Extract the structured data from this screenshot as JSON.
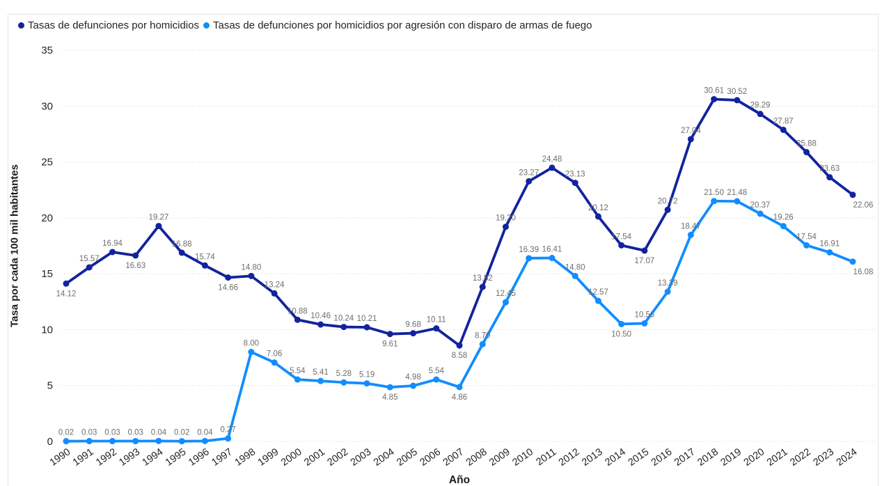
{
  "legend": {
    "items": [
      {
        "label": "Tasas de defunciones por homicidios",
        "color": "#12239E"
      },
      {
        "label": "Tasas de defunciones por homicidios por agresión con disparo de armas de fuego",
        "color": "#118DFF"
      }
    ]
  },
  "chart_data": {
    "type": "line",
    "title": "",
    "xlabel": "Año",
    "ylabel": "Tasa por cada 100 mil habitantes",
    "ylim": [
      0,
      35
    ],
    "yticks": [
      0,
      5,
      10,
      15,
      20,
      25,
      30,
      35
    ],
    "grid": "dotted-horizontal",
    "legend_position": "top-left",
    "data_label_color": "#6e6e6e",
    "categories": [
      "1990",
      "1991",
      "1992",
      "1993",
      "1994",
      "1995",
      "1996",
      "1997",
      "1998",
      "1999",
      "2000",
      "2001",
      "2002",
      "2003",
      "2004",
      "2005",
      "2006",
      "2007",
      "2008",
      "2009",
      "2010",
      "2011",
      "2012",
      "2013",
      "2014",
      "2015",
      "2016",
      "2017",
      "2018",
      "2019",
      "2020",
      "2021",
      "2022",
      "2023",
      "2024"
    ],
    "series": [
      {
        "name": "Tasas de defunciones por homicidios",
        "color": "#12239E",
        "values": [
          14.12,
          15.57,
          16.94,
          16.63,
          19.27,
          16.88,
          15.74,
          14.66,
          14.8,
          13.24,
          10.88,
          10.46,
          10.24,
          10.21,
          9.61,
          9.68,
          10.11,
          8.58,
          13.82,
          19.2,
          23.27,
          24.48,
          23.13,
          20.12,
          17.54,
          17.07,
          20.72,
          27.04,
          30.61,
          30.52,
          29.29,
          27.87,
          25.88,
          23.63,
          22.06
        ],
        "label_positions": [
          "b",
          "a",
          "a",
          "b",
          "a",
          "a",
          "a",
          "b",
          "a",
          "a",
          "a",
          "a",
          "a",
          "a",
          "b",
          "a",
          "a",
          "b",
          "a",
          "a",
          "a",
          "a",
          "a",
          "a",
          "a",
          "b",
          "a",
          "a",
          "a",
          "a",
          "a",
          "a",
          "a",
          "a",
          "b"
        ]
      },
      {
        "name": "Tasas de defunciones por homicidios por agresión con disparo de armas de fuego",
        "color": "#118DFF",
        "values": [
          0.02,
          0.03,
          0.03,
          0.03,
          0.04,
          0.02,
          0.04,
          0.27,
          8.0,
          7.06,
          5.54,
          5.41,
          5.28,
          5.19,
          4.85,
          4.98,
          5.54,
          4.86,
          8.7,
          12.45,
          16.39,
          16.41,
          14.8,
          12.57,
          10.5,
          10.56,
          13.39,
          18.47,
          21.5,
          21.48,
          20.37,
          19.26,
          17.54,
          16.91,
          16.08
        ],
        "label_positions": [
          "a",
          "a",
          "a",
          "a",
          "a",
          "a",
          "a",
          "a",
          "a",
          "a",
          "a",
          "a",
          "a",
          "a",
          "b",
          "a",
          "a",
          "b",
          "a",
          "a",
          "a",
          "a",
          "a",
          "a",
          "b",
          "a",
          "a",
          "a",
          "a",
          "a",
          "a",
          "a",
          "a",
          "a",
          "b"
        ]
      }
    ]
  }
}
